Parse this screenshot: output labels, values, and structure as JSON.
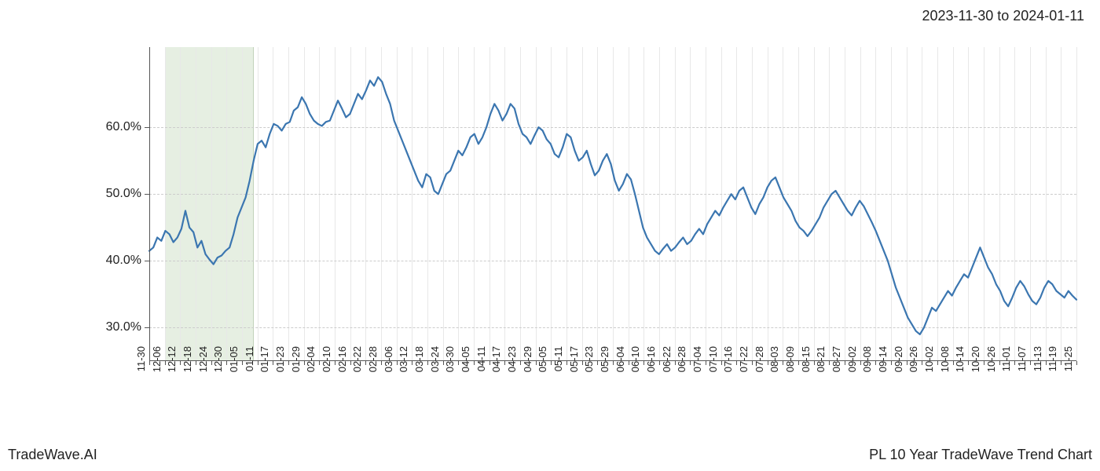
{
  "header": {
    "date_range": "2023-11-30 to 2024-01-11"
  },
  "footer": {
    "left": "TradeWave.AI",
    "right": "PL 10 Year TradeWave Trend Chart"
  },
  "chart": {
    "type": "line",
    "background_color": "#ffffff",
    "line_color": "#3b76b0",
    "line_width": 2.2,
    "grid_color_h": "#cccccc",
    "grid_color_v": "#e8e8e8",
    "axis_color": "#555555",
    "tick_label_fontsize": 16,
    "x_tick_label_fontsize": 13,
    "highlight": {
      "color": "rgba(200,220,190,0.45)",
      "start_index": 4,
      "end_index": 26
    },
    "y_axis": {
      "min": 25,
      "max": 72,
      "ticks": [
        30,
        40,
        50,
        60
      ],
      "tick_labels": [
        "30.0%",
        "40.0%",
        "50.0%",
        "60.0%"
      ]
    },
    "x_axis": {
      "labels": [
        "11-30",
        "12-06",
        "12-12",
        "12-18",
        "12-24",
        "12-30",
        "01-05",
        "01-11",
        "01-17",
        "01-23",
        "01-29",
        "02-04",
        "02-10",
        "02-16",
        "02-22",
        "02-28",
        "03-06",
        "03-12",
        "03-18",
        "03-24",
        "03-30",
        "04-05",
        "04-11",
        "04-17",
        "04-23",
        "04-29",
        "05-05",
        "05-11",
        "05-17",
        "05-23",
        "05-29",
        "06-04",
        "06-10",
        "06-16",
        "06-22",
        "06-28",
        "07-04",
        "07-10",
        "07-16",
        "07-22",
        "07-28",
        "08-03",
        "08-09",
        "08-15",
        "08-21",
        "08-27",
        "09-02",
        "09-08",
        "09-14",
        "09-20",
        "09-26",
        "10-02",
        "10-08",
        "10-14",
        "10-20",
        "10-26",
        "11-01",
        "11-07",
        "11-13",
        "11-19",
        "11-25"
      ]
    },
    "series": {
      "values": [
        41.5,
        42.0,
        43.5,
        43.0,
        44.5,
        44.0,
        42.8,
        43.5,
        44.8,
        47.5,
        45.0,
        44.3,
        42.0,
        43.0,
        41.0,
        40.2,
        39.5,
        40.5,
        40.8,
        41.5,
        42.0,
        44.0,
        46.5,
        48.0,
        49.5,
        52.0,
        55.0,
        57.5,
        58.0,
        57.0,
        59.0,
        60.5,
        60.2,
        59.5,
        60.5,
        60.8,
        62.5,
        63.0,
        64.5,
        63.5,
        62.0,
        61.0,
        60.5,
        60.2,
        60.8,
        61.0,
        62.5,
        64.0,
        62.8,
        61.5,
        62.0,
        63.5,
        65.0,
        64.2,
        65.5,
        67.0,
        66.2,
        67.5,
        66.8,
        65.0,
        63.5,
        61.0,
        59.5,
        58.0,
        56.5,
        55.0,
        53.5,
        52.0,
        51.0,
        53.0,
        52.5,
        50.5,
        50.0,
        51.5,
        53.0,
        53.5,
        55.0,
        56.5,
        55.8,
        57.0,
        58.5,
        59.0,
        57.5,
        58.5,
        60.0,
        62.0,
        63.5,
        62.5,
        61.0,
        62.0,
        63.5,
        62.8,
        60.5,
        59.0,
        58.5,
        57.5,
        58.8,
        60.0,
        59.5,
        58.2,
        57.5,
        56.0,
        55.5,
        57.0,
        59.0,
        58.5,
        56.5,
        55.0,
        55.5,
        56.5,
        54.5,
        52.8,
        53.5,
        55.0,
        56.0,
        54.5,
        52.0,
        50.5,
        51.5,
        53.0,
        52.2,
        50.0,
        47.5,
        45.0,
        43.5,
        42.5,
        41.5,
        41.0,
        41.8,
        42.5,
        41.5,
        42.0,
        42.8,
        43.5,
        42.5,
        43.0,
        44.0,
        44.8,
        44.0,
        45.5,
        46.5,
        47.5,
        46.8,
        48.0,
        49.0,
        50.0,
        49.2,
        50.5,
        51.0,
        49.5,
        48.0,
        47.0,
        48.5,
        49.5,
        51.0,
        52.0,
        52.5,
        51.0,
        49.5,
        48.5,
        47.5,
        46.0,
        45.0,
        44.5,
        43.7,
        44.5,
        45.5,
        46.5,
        48.0,
        49.0,
        50.0,
        50.5,
        49.5,
        48.5,
        47.5,
        46.8,
        48.0,
        49.0,
        48.2,
        47.0,
        45.8,
        44.5,
        43.0,
        41.5,
        40.0,
        38.0,
        36.0,
        34.5,
        33.0,
        31.5,
        30.5,
        29.5,
        29.0,
        30.0,
        31.5,
        33.0,
        32.5,
        33.5,
        34.5,
        35.5,
        34.8,
        36.0,
        37.0,
        38.0,
        37.5,
        39.0,
        40.5,
        42.0,
        40.5,
        39.0,
        38.0,
        36.5,
        35.5,
        34.0,
        33.2,
        34.5,
        36.0,
        37.0,
        36.2,
        35.0,
        34.0,
        33.5,
        34.5,
        36.0,
        37.0,
        36.5,
        35.5,
        35.0,
        34.5,
        35.5,
        34.8,
        34.2
      ]
    }
  }
}
